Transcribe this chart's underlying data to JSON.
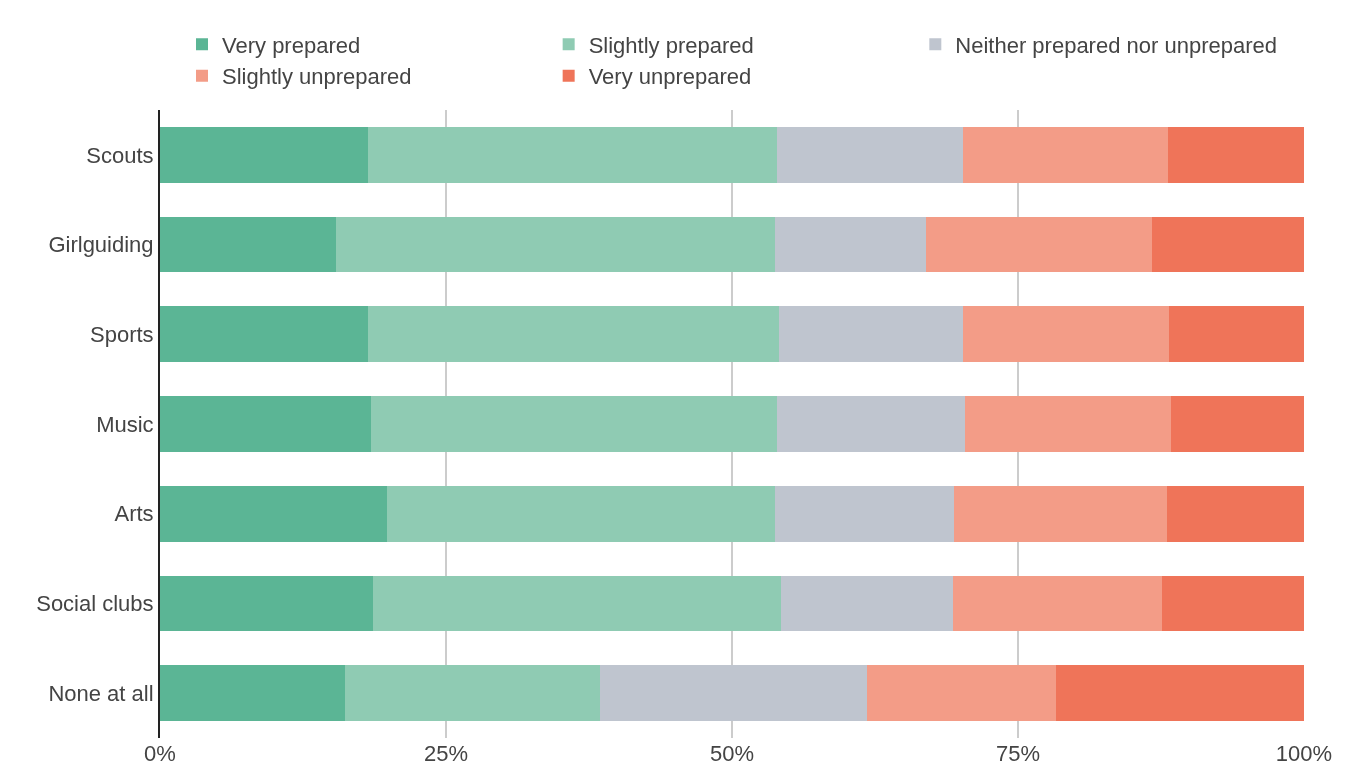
{
  "chart_data": {
    "type": "bar",
    "orientation": "horizontal",
    "stacked": true,
    "categories": [
      "Scouts",
      "Girlguiding",
      "Sports",
      "Music",
      "Arts",
      "Social clubs",
      "None at all"
    ],
    "series": [
      {
        "name": "Very prepared",
        "color": "#5bb595",
        "values": [
          18.2,
          15.4,
          18.2,
          18.4,
          19.8,
          18.6,
          16.2
        ]
      },
      {
        "name": "Slightly prepared",
        "color": "#8fcbb3",
        "values": [
          35.7,
          38.4,
          35.9,
          35.5,
          34.0,
          35.7,
          22.3
        ]
      },
      {
        "name": "Neither prepared nor unprepared",
        "color": "#bfc5cf",
        "values": [
          16.3,
          13.2,
          16.1,
          16.5,
          15.6,
          15.0,
          23.3
        ]
      },
      {
        "name": "Slightly unprepared",
        "color": "#f39c87",
        "values": [
          17.9,
          19.7,
          18.0,
          18.0,
          18.6,
          18.3,
          16.5
        ]
      },
      {
        "name": "Very unprepared",
        "color": "#ef7459",
        "values": [
          11.9,
          13.3,
          11.8,
          11.6,
          12.0,
          12.4,
          21.7
        ]
      }
    ],
    "xlim": [
      0,
      100
    ],
    "xticks": [
      {
        "value": 0,
        "label": "0%"
      },
      {
        "value": 25,
        "label": "25%"
      },
      {
        "value": 50,
        "label": "50%"
      },
      {
        "value": 75,
        "label": "75%"
      },
      {
        "value": 100,
        "label": "100%"
      }
    ],
    "grid": "x",
    "legend": "top"
  }
}
